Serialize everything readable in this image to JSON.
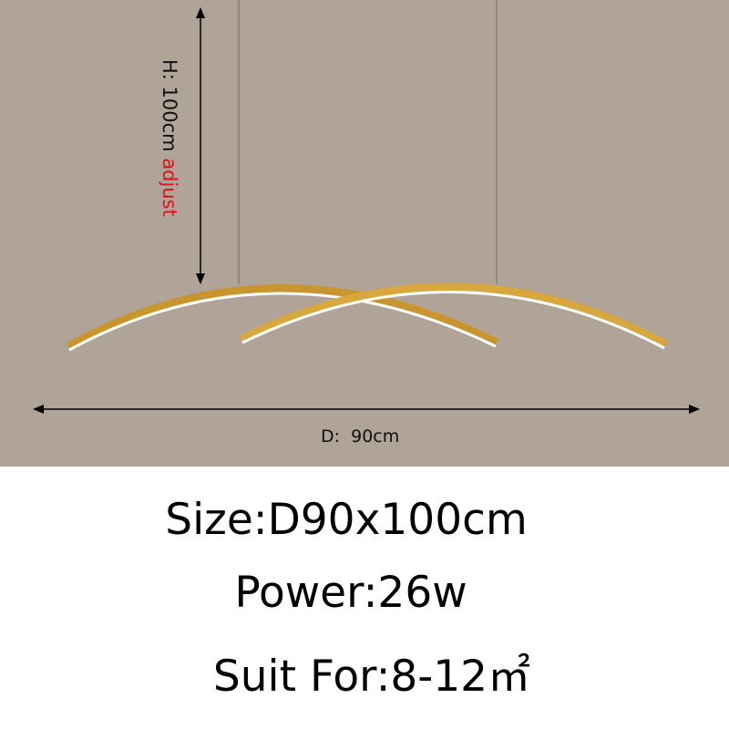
{
  "dimensions": {
    "height_label": "H:  100cm ",
    "height_note": "adjust",
    "diameter_label": "D:  90cm"
  },
  "specs": {
    "size": "Size:D90x100cm",
    "power": "Power:26w",
    "suit_for": "Suit For:8-12㎡"
  },
  "colors": {
    "background": "#b0a397",
    "lamp_gold": "#d4a23a",
    "note_red": "#e0101a"
  }
}
